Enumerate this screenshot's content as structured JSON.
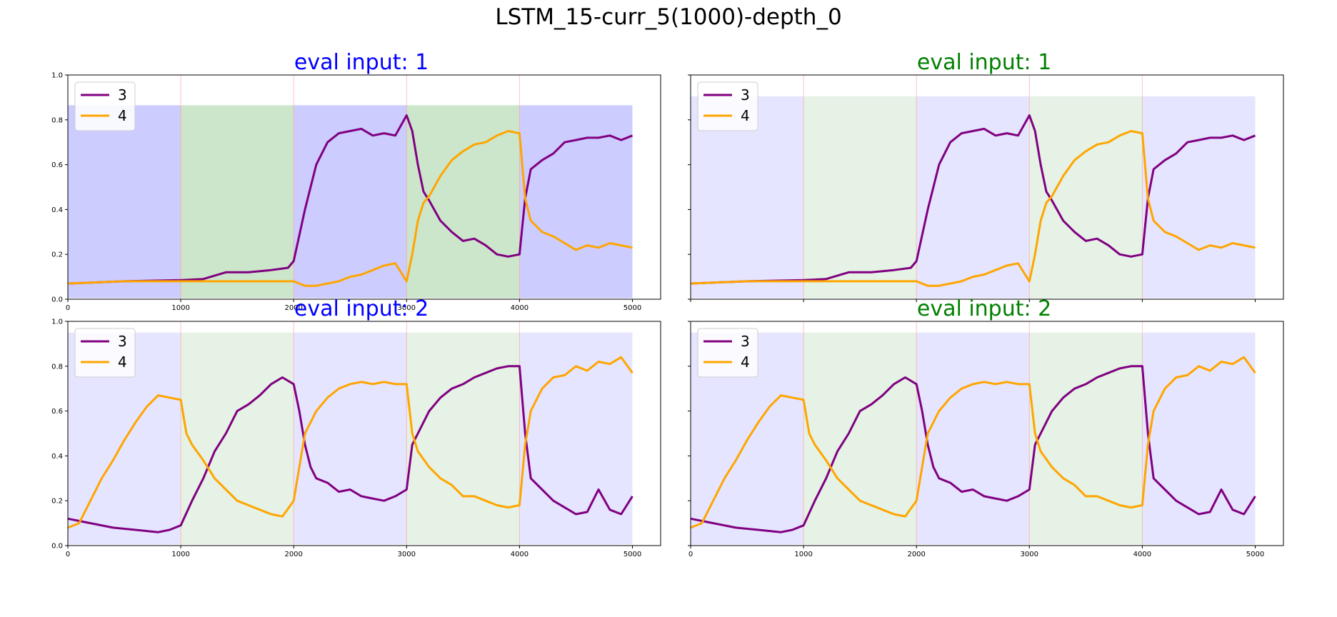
{
  "figure": {
    "title": "LSTM_15-curr_5(1000)-depth_0"
  },
  "colors": {
    "series_3": "#800080",
    "series_4": "#FFA500",
    "blue_title": "#0000ff",
    "green_title": "#008000",
    "band_blue": "#0000ff",
    "band_green": "#008000",
    "divider": "#ff9999"
  },
  "chart_data": [
    {
      "type": "line",
      "panel": "top-left",
      "title": "eval input: 1",
      "title_color": "blue",
      "xlim": [
        0,
        5250
      ],
      "ylim": [
        0,
        1.0
      ],
      "xticks": [
        "0",
        "1000",
        "2000",
        "3000",
        "4000",
        "5000"
      ],
      "yticks": [
        "0.0",
        "0.2",
        "0.4",
        "0.6",
        "0.8",
        "1.0"
      ],
      "legend_position": "upper-left",
      "band_top": 0.865,
      "band_opacity": 0.2,
      "bands": [
        "blue",
        "green",
        "blue",
        "green",
        "blue"
      ],
      "series": [
        {
          "name": "3",
          "x": [
            0,
            500,
            1000,
            1200,
            1400,
            1600,
            1800,
            1950,
            2000,
            2100,
            2200,
            2300,
            2400,
            2500,
            2600,
            2700,
            2800,
            2900,
            3000,
            3050,
            3100,
            3150,
            3200,
            3300,
            3400,
            3500,
            3600,
            3700,
            3800,
            3900,
            4000,
            4050,
            4100,
            4200,
            4300,
            4400,
            4500,
            4600,
            4700,
            4800,
            4900,
            5000
          ],
          "y": [
            0.07,
            0.08,
            0.085,
            0.09,
            0.12,
            0.12,
            0.13,
            0.14,
            0.17,
            0.4,
            0.6,
            0.7,
            0.74,
            0.75,
            0.76,
            0.73,
            0.74,
            0.73,
            0.82,
            0.75,
            0.6,
            0.48,
            0.44,
            0.35,
            0.3,
            0.26,
            0.27,
            0.24,
            0.2,
            0.19,
            0.2,
            0.45,
            0.58,
            0.62,
            0.65,
            0.7,
            0.71,
            0.72,
            0.72,
            0.73,
            0.71,
            0.73
          ]
        },
        {
          "name": "4",
          "x": [
            0,
            500,
            1000,
            1500,
            2000,
            2100,
            2200,
            2300,
            2400,
            2500,
            2600,
            2700,
            2800,
            2900,
            3000,
            3050,
            3100,
            3150,
            3200,
            3300,
            3400,
            3500,
            3600,
            3700,
            3800,
            3900,
            4000,
            4050,
            4100,
            4200,
            4300,
            4400,
            4500,
            4600,
            4700,
            4800,
            4900,
            5000
          ],
          "y": [
            0.07,
            0.08,
            0.08,
            0.08,
            0.08,
            0.06,
            0.06,
            0.07,
            0.08,
            0.1,
            0.11,
            0.13,
            0.15,
            0.16,
            0.08,
            0.2,
            0.35,
            0.43,
            0.46,
            0.55,
            0.62,
            0.66,
            0.69,
            0.7,
            0.73,
            0.75,
            0.74,
            0.45,
            0.35,
            0.3,
            0.28,
            0.25,
            0.22,
            0.24,
            0.23,
            0.25,
            0.24,
            0.23
          ]
        }
      ]
    },
    {
      "type": "line",
      "panel": "top-right",
      "title": "eval input: 1",
      "title_color": "green",
      "xlim": [
        0,
        5250
      ],
      "ylim": [
        0,
        1.0
      ],
      "xticks": [
        "",
        "",
        "",
        "",
        "",
        ""
      ],
      "yticks": [
        "",
        "",
        "",
        "",
        "",
        ""
      ],
      "legend_position": "upper-left",
      "band_top": 0.905,
      "band_opacity": 0.1,
      "bands": [
        "blue",
        "green",
        "blue",
        "green",
        "blue"
      ],
      "series": [
        {
          "name": "3",
          "x": [
            0,
            500,
            1000,
            1200,
            1400,
            1600,
            1800,
            1950,
            2000,
            2100,
            2200,
            2300,
            2400,
            2500,
            2600,
            2700,
            2800,
            2900,
            3000,
            3050,
            3100,
            3150,
            3200,
            3300,
            3400,
            3500,
            3600,
            3700,
            3800,
            3900,
            4000,
            4050,
            4100,
            4200,
            4300,
            4400,
            4500,
            4600,
            4700,
            4800,
            4900,
            5000
          ],
          "y": [
            0.07,
            0.08,
            0.085,
            0.09,
            0.12,
            0.12,
            0.13,
            0.14,
            0.17,
            0.4,
            0.6,
            0.7,
            0.74,
            0.75,
            0.76,
            0.73,
            0.74,
            0.73,
            0.82,
            0.75,
            0.6,
            0.48,
            0.44,
            0.35,
            0.3,
            0.26,
            0.27,
            0.24,
            0.2,
            0.19,
            0.2,
            0.45,
            0.58,
            0.62,
            0.65,
            0.7,
            0.71,
            0.72,
            0.72,
            0.73,
            0.71,
            0.73
          ]
        },
        {
          "name": "4",
          "x": [
            0,
            500,
            1000,
            1500,
            2000,
            2100,
            2200,
            2300,
            2400,
            2500,
            2600,
            2700,
            2800,
            2900,
            3000,
            3050,
            3100,
            3150,
            3200,
            3300,
            3400,
            3500,
            3600,
            3700,
            3800,
            3900,
            4000,
            4050,
            4100,
            4200,
            4300,
            4400,
            4500,
            4600,
            4700,
            4800,
            4900,
            5000
          ],
          "y": [
            0.07,
            0.08,
            0.08,
            0.08,
            0.08,
            0.06,
            0.06,
            0.07,
            0.08,
            0.1,
            0.11,
            0.13,
            0.15,
            0.16,
            0.08,
            0.2,
            0.35,
            0.43,
            0.46,
            0.55,
            0.62,
            0.66,
            0.69,
            0.7,
            0.73,
            0.75,
            0.74,
            0.45,
            0.35,
            0.3,
            0.28,
            0.25,
            0.22,
            0.24,
            0.23,
            0.25,
            0.24,
            0.23
          ]
        }
      ]
    },
    {
      "type": "line",
      "panel": "bottom-left",
      "title": "eval input: 2",
      "title_color": "blue",
      "xlim": [
        0,
        5250
      ],
      "ylim": [
        0,
        1.0
      ],
      "xticks": [
        "0",
        "1000",
        "2000",
        "3000",
        "4000",
        "5000"
      ],
      "yticks": [
        "0.0",
        "0.2",
        "0.4",
        "0.6",
        "0.8",
        "1.0"
      ],
      "legend_position": "upper-left",
      "band_top": 0.95,
      "band_opacity": 0.1,
      "bands": [
        "blue",
        "green",
        "blue",
        "green",
        "blue"
      ],
      "series": [
        {
          "name": "3",
          "x": [
            0,
            100,
            200,
            400,
            600,
            800,
            900,
            1000,
            1100,
            1200,
            1300,
            1400,
            1500,
            1600,
            1700,
            1800,
            1900,
            2000,
            2050,
            2100,
            2150,
            2200,
            2300,
            2400,
            2500,
            2600,
            2700,
            2800,
            2900,
            3000,
            3050,
            3100,
            3200,
            3300,
            3400,
            3500,
            3600,
            3700,
            3800,
            3900,
            4000,
            4050,
            4100,
            4200,
            4300,
            4400,
            4500,
            4600,
            4700,
            4800,
            4900,
            5000
          ],
          "y": [
            0.12,
            0.11,
            0.1,
            0.08,
            0.07,
            0.06,
            0.07,
            0.09,
            0.2,
            0.3,
            0.42,
            0.5,
            0.6,
            0.63,
            0.67,
            0.72,
            0.75,
            0.72,
            0.6,
            0.45,
            0.35,
            0.3,
            0.28,
            0.24,
            0.25,
            0.22,
            0.21,
            0.2,
            0.22,
            0.25,
            0.45,
            0.5,
            0.6,
            0.66,
            0.7,
            0.72,
            0.75,
            0.77,
            0.79,
            0.8,
            0.8,
            0.5,
            0.3,
            0.25,
            0.2,
            0.17,
            0.14,
            0.15,
            0.25,
            0.16,
            0.14,
            0.22
          ]
        },
        {
          "name": "4",
          "x": [
            0,
            100,
            200,
            300,
            400,
            500,
            600,
            700,
            800,
            900,
            1000,
            1050,
            1100,
            1200,
            1300,
            1400,
            1500,
            1600,
            1700,
            1800,
            1900,
            2000,
            2050,
            2100,
            2200,
            2300,
            2400,
            2500,
            2600,
            2700,
            2800,
            2900,
            3000,
            3050,
            3100,
            3200,
            3300,
            3400,
            3500,
            3600,
            3700,
            3800,
            3900,
            4000,
            4050,
            4100,
            4200,
            4300,
            4400,
            4500,
            4600,
            4700,
            4800,
            4900,
            5000
          ],
          "y": [
            0.08,
            0.1,
            0.2,
            0.3,
            0.38,
            0.47,
            0.55,
            0.62,
            0.67,
            0.66,
            0.65,
            0.5,
            0.45,
            0.38,
            0.3,
            0.25,
            0.2,
            0.18,
            0.16,
            0.14,
            0.13,
            0.2,
            0.35,
            0.5,
            0.6,
            0.66,
            0.7,
            0.72,
            0.73,
            0.72,
            0.73,
            0.72,
            0.72,
            0.5,
            0.42,
            0.35,
            0.3,
            0.27,
            0.22,
            0.22,
            0.2,
            0.18,
            0.17,
            0.18,
            0.45,
            0.6,
            0.7,
            0.75,
            0.76,
            0.8,
            0.78,
            0.82,
            0.81,
            0.84,
            0.77
          ]
        }
      ]
    },
    {
      "type": "line",
      "panel": "bottom-right",
      "title": "eval input: 2",
      "title_color": "green",
      "xlim": [
        0,
        5250
      ],
      "ylim": [
        0,
        1.0
      ],
      "xticks": [
        "0",
        "1000",
        "2000",
        "3000",
        "4000",
        "5000"
      ],
      "yticks": [
        "",
        "",
        "",
        "",
        "",
        ""
      ],
      "legend_position": "upper-left",
      "band_top": 0.95,
      "band_opacity": 0.1,
      "bands": [
        "blue",
        "green",
        "blue",
        "green",
        "blue"
      ],
      "series": [
        {
          "name": "3",
          "x": [
            0,
            100,
            200,
            400,
            600,
            800,
            900,
            1000,
            1100,
            1200,
            1300,
            1400,
            1500,
            1600,
            1700,
            1800,
            1900,
            2000,
            2050,
            2100,
            2150,
            2200,
            2300,
            2400,
            2500,
            2600,
            2700,
            2800,
            2900,
            3000,
            3050,
            3100,
            3200,
            3300,
            3400,
            3500,
            3600,
            3700,
            3800,
            3900,
            4000,
            4050,
            4100,
            4200,
            4300,
            4400,
            4500,
            4600,
            4700,
            4800,
            4900,
            5000
          ],
          "y": [
            0.12,
            0.11,
            0.1,
            0.08,
            0.07,
            0.06,
            0.07,
            0.09,
            0.2,
            0.3,
            0.42,
            0.5,
            0.6,
            0.63,
            0.67,
            0.72,
            0.75,
            0.72,
            0.6,
            0.45,
            0.35,
            0.3,
            0.28,
            0.24,
            0.25,
            0.22,
            0.21,
            0.2,
            0.22,
            0.25,
            0.45,
            0.5,
            0.6,
            0.66,
            0.7,
            0.72,
            0.75,
            0.77,
            0.79,
            0.8,
            0.8,
            0.5,
            0.3,
            0.25,
            0.2,
            0.17,
            0.14,
            0.15,
            0.25,
            0.16,
            0.14,
            0.22
          ]
        },
        {
          "name": "4",
          "x": [
            0,
            100,
            200,
            300,
            400,
            500,
            600,
            700,
            800,
            900,
            1000,
            1050,
            1100,
            1200,
            1300,
            1400,
            1500,
            1600,
            1700,
            1800,
            1900,
            2000,
            2050,
            2100,
            2200,
            2300,
            2400,
            2500,
            2600,
            2700,
            2800,
            2900,
            3000,
            3050,
            3100,
            3200,
            3300,
            3400,
            3500,
            3600,
            3700,
            3800,
            3900,
            4000,
            4050,
            4100,
            4200,
            4300,
            4400,
            4500,
            4600,
            4700,
            4800,
            4900,
            5000
          ],
          "y": [
            0.08,
            0.1,
            0.2,
            0.3,
            0.38,
            0.47,
            0.55,
            0.62,
            0.67,
            0.66,
            0.65,
            0.5,
            0.45,
            0.38,
            0.3,
            0.25,
            0.2,
            0.18,
            0.16,
            0.14,
            0.13,
            0.2,
            0.35,
            0.5,
            0.6,
            0.66,
            0.7,
            0.72,
            0.73,
            0.72,
            0.73,
            0.72,
            0.72,
            0.5,
            0.42,
            0.35,
            0.3,
            0.27,
            0.22,
            0.22,
            0.2,
            0.18,
            0.17,
            0.18,
            0.45,
            0.6,
            0.7,
            0.75,
            0.76,
            0.8,
            0.78,
            0.82,
            0.81,
            0.84,
            0.77
          ]
        }
      ]
    }
  ]
}
